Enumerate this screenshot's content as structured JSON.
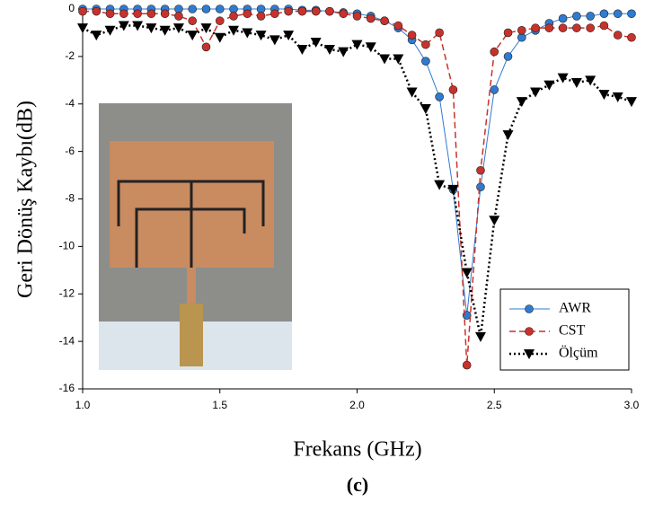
{
  "chart_data": {
    "type": "line",
    "ylabel": "Geri Dönüş Kaybı(dB)",
    "xlabel": "Frekans (GHz)",
    "caption": "(c)",
    "x": [
      1.0,
      1.05,
      1.1,
      1.15,
      1.2,
      1.25,
      1.3,
      1.35,
      1.4,
      1.45,
      1.5,
      1.55,
      1.6,
      1.65,
      1.7,
      1.75,
      1.8,
      1.85,
      1.9,
      1.95,
      2.0,
      2.05,
      2.1,
      2.15,
      2.2,
      2.25,
      2.3,
      2.35,
      2.4,
      2.45,
      2.5,
      2.55,
      2.6,
      2.65,
      2.7,
      2.75,
      2.8,
      2.85,
      2.9,
      2.95,
      3.0
    ],
    "series": [
      {
        "name": "AWR",
        "color": "#2f7bd0",
        "marker": "circle",
        "linestyle": "solid",
        "values": [
          0,
          0,
          0,
          0,
          0,
          0,
          0,
          0,
          0,
          0,
          0,
          0,
          0,
          0,
          0,
          0,
          -0.05,
          -0.05,
          -0.1,
          -0.15,
          -0.2,
          -0.3,
          -0.5,
          -0.8,
          -1.3,
          -2.2,
          -3.7,
          -7.6,
          -12.9,
          -7.5,
          -3.4,
          -2.0,
          -1.2,
          -0.9,
          -0.6,
          -0.4,
          -0.3,
          -0.3,
          -0.2,
          -0.2,
          -0.2
        ]
      },
      {
        "name": "CST",
        "color": "#c8322c",
        "marker": "circle",
        "linestyle": "dashed",
        "values": [
          -0.1,
          -0.1,
          -0.2,
          -0.2,
          -0.2,
          -0.2,
          -0.2,
          -0.3,
          -0.5,
          -1.6,
          -0.5,
          -0.3,
          -0.2,
          -0.3,
          -0.2,
          -0.1,
          -0.1,
          -0.1,
          -0.1,
          -0.2,
          -0.3,
          -0.4,
          -0.5,
          -0.7,
          -1.1,
          -1.5,
          -1.0,
          -3.4,
          -15.0,
          -6.8,
          -1.8,
          -1.0,
          -0.9,
          -0.8,
          -0.8,
          -0.8,
          -0.8,
          -0.8,
          -0.7,
          -1.1,
          -1.2
        ]
      },
      {
        "name": "Ölçüm",
        "color": "#000000",
        "marker": "triangle-down",
        "linestyle": "dotted",
        "values": [
          -0.8,
          -1.1,
          -0.9,
          -0.7,
          -0.7,
          -0.8,
          -0.9,
          -0.8,
          -1.1,
          -0.8,
          -1.2,
          -0.9,
          -1.0,
          -1.1,
          -1.3,
          -1.1,
          -1.7,
          -1.4,
          -1.7,
          -1.8,
          -1.5,
          -1.6,
          -2.1,
          -2.1,
          -3.5,
          -4.2,
          -7.4,
          -7.6,
          -11.1,
          -13.8,
          -8.9,
          -5.3,
          -3.9,
          -3.5,
          -3.2,
          -2.9,
          -3.1,
          -3.0,
          -3.6,
          -3.7,
          -3.9
        ]
      }
    ],
    "xlim": [
      1.0,
      3.0
    ],
    "ylim": [
      -16,
      0
    ],
    "xticks": [
      {
        "value": 1.0,
        "label": "1.0"
      },
      1.5,
      {
        "value": 2.0,
        "label": "2.0"
      },
      2.5,
      {
        "value": 3.0,
        "label": "3.0"
      }
    ],
    "yticks": [
      0,
      -2,
      -4,
      -6,
      -8,
      -10,
      -12,
      -14,
      -16
    ],
    "legend": "lower right"
  }
}
